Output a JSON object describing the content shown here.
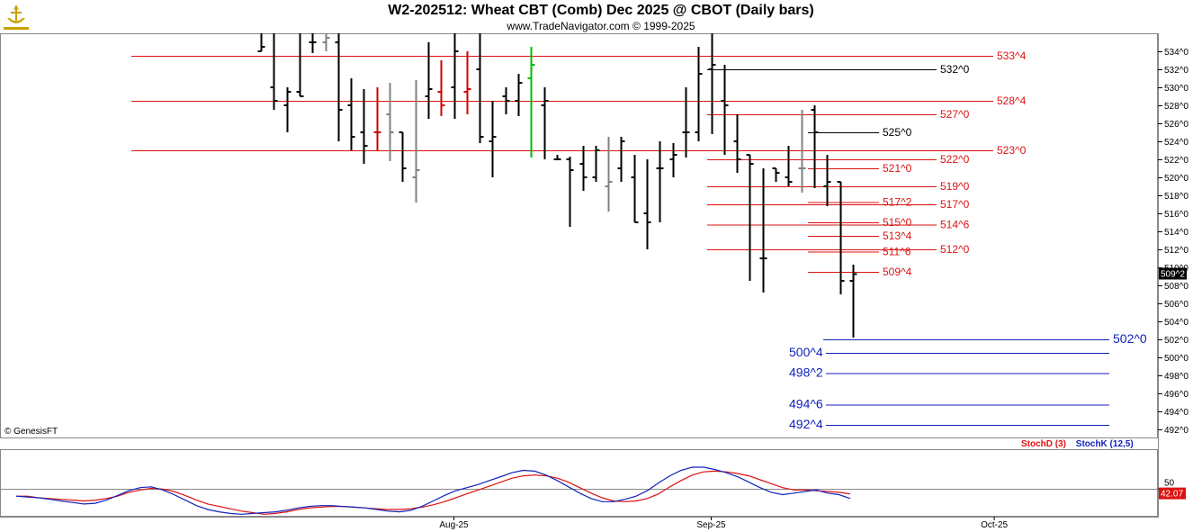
{
  "title": "W2-202512:  Wheat CBT (Comb) Dec 2025 @ CBOT  (Daily bars)",
  "subtitle": "www.TradeNavigator.com © 1999-2025",
  "copyright": "© GenesisFT",
  "colors": {
    "background": "#ffffff",
    "bar": "#000000",
    "bar_down": "#cc0000",
    "bar_gray": "#808080",
    "bar_green": "#00bb00",
    "level_red": "#dd1111",
    "level_black": "#000000",
    "level_blue": "#1122bb",
    "stochD": "#dd1111",
    "stochK": "#1122bb",
    "price_tag": "#000000",
    "stoch_tag": "#dd1111"
  },
  "chart_data": [
    {
      "type": "ohlc",
      "title": "W2-202512:  Wheat CBT (Comb) Dec 2025 @ CBOT  (Daily bars)",
      "ylim": [
        491,
        536
      ],
      "y_ticks": [
        "534^0",
        "532^0",
        "530^0",
        "528^0",
        "526^0",
        "524^0",
        "522^0",
        "520^0",
        "518^0",
        "516^0",
        "514^0",
        "512^0",
        "510^0",
        "508^0",
        "506^0",
        "504^0",
        "502^0",
        "500^0",
        "498^0",
        "496^0",
        "494^0",
        "492^0"
      ],
      "x_tick_labels": [
        {
          "label": "Aug-25",
          "bar_index": 15
        },
        {
          "label": "Sep-25",
          "bar_index": 35
        },
        {
          "label": "Oct-25",
          "bar_index": 57
        }
      ],
      "last_price": "509^2",
      "last_price_value": 509.25,
      "bars": [
        {
          "o": 534,
          "h": 536,
          "l": 534,
          "c": 534.5,
          "color": "black"
        },
        {
          "o": 530,
          "h": 536,
          "l": 527.5,
          "c": 528.5,
          "color": "black"
        },
        {
          "o": 528,
          "h": 530,
          "l": 525,
          "c": 529.5,
          "color": "black"
        },
        {
          "o": 529.5,
          "h": 536,
          "l": 529,
          "c": 529,
          "color": "black"
        },
        {
          "o": 535,
          "h": 536,
          "l": 533.8,
          "c": 535,
          "color": "black"
        },
        {
          "o": 535,
          "h": 536,
          "l": 534,
          "c": 535.5,
          "color": "gray"
        },
        {
          "o": 535,
          "h": 536,
          "l": 524,
          "c": 527.5,
          "color": "black"
        },
        {
          "o": 528,
          "h": 531,
          "l": 523,
          "c": 524.5,
          "color": "black"
        },
        {
          "o": 525,
          "h": 529.8,
          "l": 521.5,
          "c": 523.5,
          "color": "black"
        },
        {
          "o": 525,
          "h": 530,
          "l": 523,
          "c": 525,
          "color": "red"
        },
        {
          "o": 527,
          "h": 530.5,
          "l": 521.8,
          "c": 525,
          "color": "gray"
        },
        {
          "o": 525,
          "h": 525,
          "l": 519.5,
          "c": 521,
          "color": "black"
        },
        {
          "o": 520,
          "h": 530.8,
          "l": 517.2,
          "c": 520.8,
          "color": "gray"
        },
        {
          "o": 529,
          "h": 535,
          "l": 526.5,
          "c": 529.8,
          "color": "black"
        },
        {
          "o": 529.5,
          "h": 533,
          "l": 526.8,
          "c": 528,
          "color": "red"
        },
        {
          "o": 530,
          "h": 536,
          "l": 526.5,
          "c": 534,
          "color": "black"
        },
        {
          "o": 529.5,
          "h": 534,
          "l": 527,
          "c": 529.8,
          "color": "red"
        },
        {
          "o": 532,
          "h": 536,
          "l": 523.8,
          "c": 524.5,
          "color": "black"
        },
        {
          "o": 524,
          "h": 528.5,
          "l": 520,
          "c": 524.5,
          "color": "black"
        },
        {
          "o": 529,
          "h": 530,
          "l": 527,
          "c": 528.5,
          "color": "black"
        },
        {
          "o": 528.5,
          "h": 531.5,
          "l": 526.8,
          "c": 530.5,
          "color": "black"
        },
        {
          "o": 531,
          "h": 534.5,
          "l": 522.2,
          "c": 532.5,
          "color": "green"
        },
        {
          "o": 528,
          "h": 530,
          "l": 522,
          "c": 528.5,
          "color": "black"
        },
        {
          "o": 522,
          "h": 522.5,
          "l": 522,
          "c": 522,
          "color": "black"
        },
        {
          "o": 522,
          "h": 522.3,
          "l": 514.5,
          "c": 520.8,
          "color": "black"
        },
        {
          "o": 521.5,
          "h": 523.5,
          "l": 518.5,
          "c": 520,
          "color": "black"
        },
        {
          "o": 520,
          "h": 523.5,
          "l": 519.5,
          "c": 523,
          "color": "black"
        },
        {
          "o": 519,
          "h": 524.5,
          "l": 516.2,
          "c": 519.5,
          "color": "gray"
        },
        {
          "o": 521,
          "h": 524.5,
          "l": 519.5,
          "c": 524,
          "color": "black"
        },
        {
          "o": 520,
          "h": 522.5,
          "l": 515,
          "c": 515,
          "color": "black"
        },
        {
          "o": 516,
          "h": 522,
          "l": 512,
          "c": 515,
          "color": "black"
        },
        {
          "o": 521,
          "h": 524,
          "l": 515,
          "c": 521,
          "color": "black"
        },
        {
          "o": 522,
          "h": 523.8,
          "l": 520,
          "c": 522.5,
          "color": "black"
        },
        {
          "o": 525,
          "h": 530,
          "l": 522.2,
          "c": 525,
          "color": "black"
        },
        {
          "o": 525,
          "h": 534.5,
          "l": 524,
          "c": 531.5,
          "color": "black"
        },
        {
          "o": 532,
          "h": 536,
          "l": 524.8,
          "c": 532.5,
          "color": "black"
        },
        {
          "o": 528.5,
          "h": 532.5,
          "l": 522.5,
          "c": 528,
          "color": "black"
        },
        {
          "o": 524,
          "h": 527,
          "l": 520.5,
          "c": 522,
          "color": "black"
        },
        {
          "o": 522.5,
          "h": 522.5,
          "l": 508.5,
          "c": 521.5,
          "color": "black"
        },
        {
          "o": 511,
          "h": 521,
          "l": 507.2,
          "c": 511,
          "color": "black"
        },
        {
          "o": 521,
          "h": 521,
          "l": 519.5,
          "c": 520.5,
          "color": "black"
        },
        {
          "o": 520,
          "h": 523.5,
          "l": 519,
          "c": 519.5,
          "color": "black"
        },
        {
          "o": 521,
          "h": 527.5,
          "l": 518.3,
          "c": 521,
          "color": "gray"
        },
        {
          "o": 527.5,
          "h": 528,
          "l": 518.8,
          "c": 525,
          "color": "black"
        },
        {
          "o": 519,
          "h": 522.5,
          "l": 516.8,
          "c": 519.5,
          "color": "black"
        },
        {
          "o": 519.5,
          "h": 519.5,
          "l": 507,
          "c": 508.5,
          "color": "black"
        },
        {
          "o": 508.5,
          "h": 510.3,
          "l": 502.2,
          "c": 509.25,
          "color": "black"
        }
      ],
      "levels": [
        {
          "value": 533.5,
          "label": "533^4",
          "color": "red",
          "extent": "long"
        },
        {
          "value": 532.0,
          "label": "532^0",
          "color": "black",
          "extent": "mid"
        },
        {
          "value": 528.5,
          "label": "528^4",
          "color": "red",
          "extent": "long"
        },
        {
          "value": 527.0,
          "label": "527^0",
          "color": "red",
          "extent": "mid"
        },
        {
          "value": 525.0,
          "label": "525^0",
          "color": "black",
          "extent": "short"
        },
        {
          "value": 523.0,
          "label": "523^0",
          "color": "red",
          "extent": "long"
        },
        {
          "value": 522.0,
          "label": "522^0",
          "color": "red",
          "extent": "mid"
        },
        {
          "value": 521.0,
          "label": "521^0",
          "color": "red",
          "extent": "short"
        },
        {
          "value": 519.0,
          "label": "519^0",
          "color": "red",
          "extent": "mid"
        },
        {
          "value": 517.25,
          "label": "517^2",
          "color": "red",
          "extent": "short"
        },
        {
          "value": 517.0,
          "label": "517^0",
          "color": "red",
          "extent": "mid"
        },
        {
          "value": 515.0,
          "label": "515^0",
          "color": "red",
          "extent": "short"
        },
        {
          "value": 514.75,
          "label": "514^6",
          "color": "red",
          "extent": "mid"
        },
        {
          "value": 513.5,
          "label": "513^4",
          "color": "red",
          "extent": "short"
        },
        {
          "value": 512.0,
          "label": "512^0",
          "color": "red",
          "extent": "mid"
        },
        {
          "value": 511.75,
          "label": "511^6",
          "color": "red",
          "extent": "short"
        },
        {
          "value": 509.5,
          "label": "509^4",
          "color": "red",
          "extent": "short"
        },
        {
          "value": 502.0,
          "label": "502^0",
          "color": "blue",
          "extent": "blue_long"
        },
        {
          "value": 500.5,
          "label": "500^4",
          "color": "blue",
          "extent": "blue"
        },
        {
          "value": 498.25,
          "label": "498^2",
          "color": "blue",
          "extent": "blue"
        },
        {
          "value": 494.75,
          "label": "494^6",
          "color": "blue",
          "extent": "blue"
        },
        {
          "value": 492.5,
          "label": "492^4",
          "color": "blue",
          "extent": "blue"
        }
      ]
    },
    {
      "type": "line",
      "title": "",
      "ylim": [
        15,
        100
      ],
      "y_ticks": [
        "50"
      ],
      "last_value_tag": "42.07",
      "series": [
        {
          "name": "StochD (3)",
          "color": "#dd1111",
          "values": [
            40,
            40,
            38,
            37,
            36,
            35,
            34,
            35,
            37,
            40,
            45,
            48,
            50,
            49,
            46,
            41,
            35,
            30,
            27,
            24,
            21,
            19,
            17,
            18,
            20,
            23,
            25,
            26,
            27,
            27,
            26,
            25,
            24,
            23,
            23,
            24,
            26,
            29,
            33,
            38,
            43,
            48,
            53,
            58,
            63,
            66,
            67,
            66,
            63,
            58,
            51,
            44,
            38,
            34,
            33,
            34,
            37,
            43,
            52,
            60,
            67,
            71,
            72,
            71,
            69,
            66,
            61,
            56,
            51,
            48,
            48,
            47,
            46,
            45,
            43
          ]
        },
        {
          "name": "StochK (12,5)",
          "color": "#1122bb",
          "values": [
            40,
            39,
            38,
            36,
            34,
            32,
            30,
            31,
            35,
            41,
            47,
            51,
            52,
            48,
            42,
            35,
            28,
            23,
            20,
            18,
            17,
            18,
            19,
            20,
            22,
            25,
            27,
            28,
            28,
            27,
            26,
            25,
            23,
            21,
            20,
            22,
            27,
            34,
            41,
            47,
            51,
            55,
            60,
            65,
            70,
            73,
            72,
            67,
            60,
            52,
            44,
            37,
            33,
            33,
            36,
            40,
            47,
            57,
            66,
            73,
            77,
            77,
            74,
            70,
            65,
            58,
            51,
            45,
            42,
            44,
            46,
            48,
            44,
            42,
            37
          ]
        }
      ],
      "legend": [
        {
          "label": "StochD (3)",
          "color": "#dd1111"
        },
        {
          "label": "StochK (12,5)",
          "color": "#1122bb"
        }
      ]
    }
  ]
}
